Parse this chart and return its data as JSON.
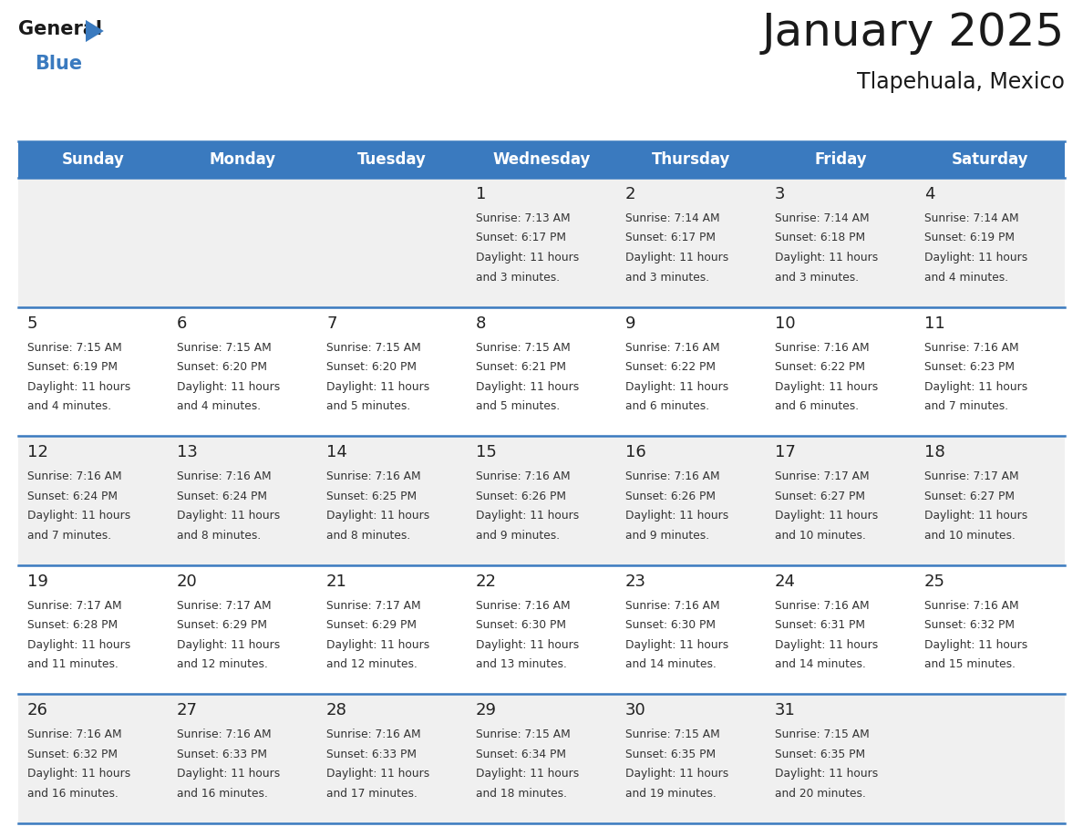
{
  "title": "January 2025",
  "subtitle": "Tlapehuala, Mexico",
  "header_bg": "#3a7abf",
  "header_text": "#ffffff",
  "row_bg_odd": "#f0f0f0",
  "row_bg_even": "#ffffff",
  "separator_color": "#3a7abf",
  "day_headers": [
    "Sunday",
    "Monday",
    "Tuesday",
    "Wednesday",
    "Thursday",
    "Friday",
    "Saturday"
  ],
  "cell_text_color": "#333333",
  "day_num_color": "#222222",
  "calendar": [
    [
      null,
      null,
      null,
      {
        "day": 1,
        "sunrise": "7:13 AM",
        "sunset": "6:17 PM",
        "daylight_hours": 11,
        "daylight_minutes": 3
      },
      {
        "day": 2,
        "sunrise": "7:14 AM",
        "sunset": "6:17 PM",
        "daylight_hours": 11,
        "daylight_minutes": 3
      },
      {
        "day": 3,
        "sunrise": "7:14 AM",
        "sunset": "6:18 PM",
        "daylight_hours": 11,
        "daylight_minutes": 3
      },
      {
        "day": 4,
        "sunrise": "7:14 AM",
        "sunset": "6:19 PM",
        "daylight_hours": 11,
        "daylight_minutes": 4
      }
    ],
    [
      {
        "day": 5,
        "sunrise": "7:15 AM",
        "sunset": "6:19 PM",
        "daylight_hours": 11,
        "daylight_minutes": 4
      },
      {
        "day": 6,
        "sunrise": "7:15 AM",
        "sunset": "6:20 PM",
        "daylight_hours": 11,
        "daylight_minutes": 4
      },
      {
        "day": 7,
        "sunrise": "7:15 AM",
        "sunset": "6:20 PM",
        "daylight_hours": 11,
        "daylight_minutes": 5
      },
      {
        "day": 8,
        "sunrise": "7:15 AM",
        "sunset": "6:21 PM",
        "daylight_hours": 11,
        "daylight_minutes": 5
      },
      {
        "day": 9,
        "sunrise": "7:16 AM",
        "sunset": "6:22 PM",
        "daylight_hours": 11,
        "daylight_minutes": 6
      },
      {
        "day": 10,
        "sunrise": "7:16 AM",
        "sunset": "6:22 PM",
        "daylight_hours": 11,
        "daylight_minutes": 6
      },
      {
        "day": 11,
        "sunrise": "7:16 AM",
        "sunset": "6:23 PM",
        "daylight_hours": 11,
        "daylight_minutes": 7
      }
    ],
    [
      {
        "day": 12,
        "sunrise": "7:16 AM",
        "sunset": "6:24 PM",
        "daylight_hours": 11,
        "daylight_minutes": 7
      },
      {
        "day": 13,
        "sunrise": "7:16 AM",
        "sunset": "6:24 PM",
        "daylight_hours": 11,
        "daylight_minutes": 8
      },
      {
        "day": 14,
        "sunrise": "7:16 AM",
        "sunset": "6:25 PM",
        "daylight_hours": 11,
        "daylight_minutes": 8
      },
      {
        "day": 15,
        "sunrise": "7:16 AM",
        "sunset": "6:26 PM",
        "daylight_hours": 11,
        "daylight_minutes": 9
      },
      {
        "day": 16,
        "sunrise": "7:16 AM",
        "sunset": "6:26 PM",
        "daylight_hours": 11,
        "daylight_minutes": 9
      },
      {
        "day": 17,
        "sunrise": "7:17 AM",
        "sunset": "6:27 PM",
        "daylight_hours": 11,
        "daylight_minutes": 10
      },
      {
        "day": 18,
        "sunrise": "7:17 AM",
        "sunset": "6:27 PM",
        "daylight_hours": 11,
        "daylight_minutes": 10
      }
    ],
    [
      {
        "day": 19,
        "sunrise": "7:17 AM",
        "sunset": "6:28 PM",
        "daylight_hours": 11,
        "daylight_minutes": 11
      },
      {
        "day": 20,
        "sunrise": "7:17 AM",
        "sunset": "6:29 PM",
        "daylight_hours": 11,
        "daylight_minutes": 12
      },
      {
        "day": 21,
        "sunrise": "7:17 AM",
        "sunset": "6:29 PM",
        "daylight_hours": 11,
        "daylight_minutes": 12
      },
      {
        "day": 22,
        "sunrise": "7:16 AM",
        "sunset": "6:30 PM",
        "daylight_hours": 11,
        "daylight_minutes": 13
      },
      {
        "day": 23,
        "sunrise": "7:16 AM",
        "sunset": "6:30 PM",
        "daylight_hours": 11,
        "daylight_minutes": 14
      },
      {
        "day": 24,
        "sunrise": "7:16 AM",
        "sunset": "6:31 PM",
        "daylight_hours": 11,
        "daylight_minutes": 14
      },
      {
        "day": 25,
        "sunrise": "7:16 AM",
        "sunset": "6:32 PM",
        "daylight_hours": 11,
        "daylight_minutes": 15
      }
    ],
    [
      {
        "day": 26,
        "sunrise": "7:16 AM",
        "sunset": "6:32 PM",
        "daylight_hours": 11,
        "daylight_minutes": 16
      },
      {
        "day": 27,
        "sunrise": "7:16 AM",
        "sunset": "6:33 PM",
        "daylight_hours": 11,
        "daylight_minutes": 16
      },
      {
        "day": 28,
        "sunrise": "7:16 AM",
        "sunset": "6:33 PM",
        "daylight_hours": 11,
        "daylight_minutes": 17
      },
      {
        "day": 29,
        "sunrise": "7:15 AM",
        "sunset": "6:34 PM",
        "daylight_hours": 11,
        "daylight_minutes": 18
      },
      {
        "day": 30,
        "sunrise": "7:15 AM",
        "sunset": "6:35 PM",
        "daylight_hours": 11,
        "daylight_minutes": 19
      },
      {
        "day": 31,
        "sunrise": "7:15 AM",
        "sunset": "6:35 PM",
        "daylight_hours": 11,
        "daylight_minutes": 20
      },
      null
    ]
  ],
  "logo_general_color": "#1a1a1a",
  "logo_blue_color": "#3a7abf",
  "logo_triangle_color": "#3a7abf",
  "title_fontsize": 36,
  "subtitle_fontsize": 17,
  "header_fontsize": 12,
  "day_num_fontsize": 13,
  "cell_text_fontsize": 8.8
}
